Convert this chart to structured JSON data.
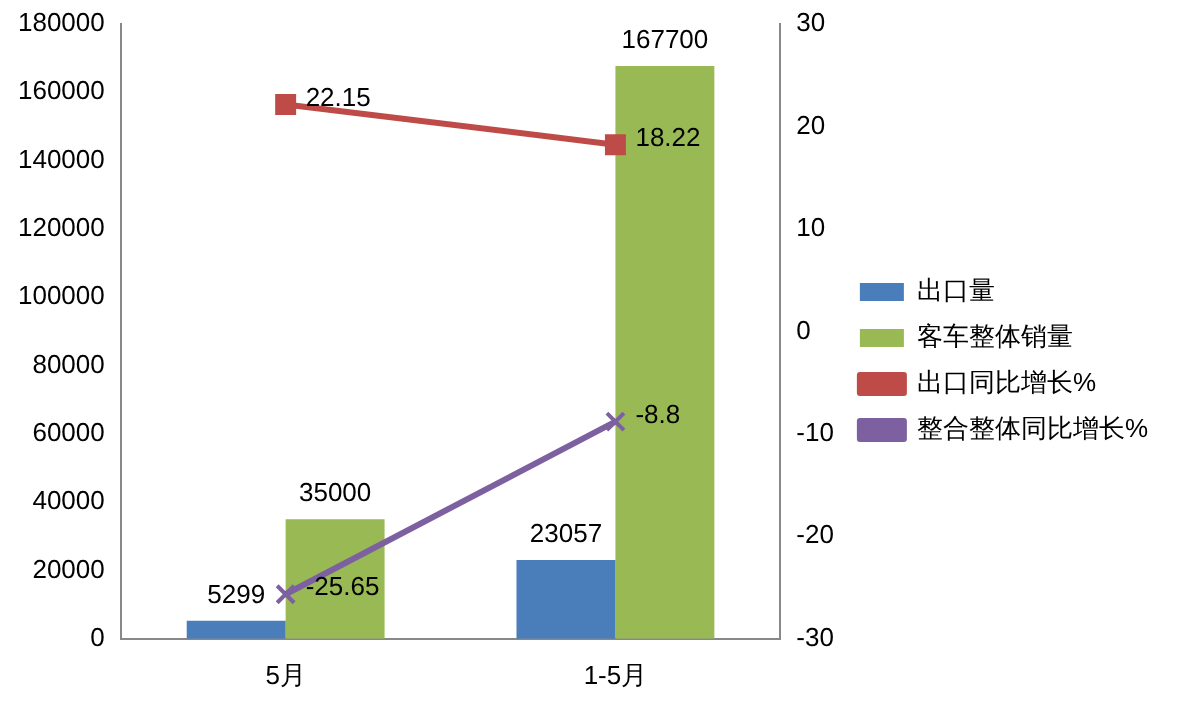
{
  "chart_data": {
    "type": "bar",
    "categories": [
      "5月",
      "1-5月"
    ],
    "series": [
      {
        "name": "出口量",
        "color": "#4a7ebb",
        "values": [
          5299,
          23057
        ]
      },
      {
        "name": "客车整体销量",
        "color": "#98b954",
        "values": [
          35000,
          167700
        ]
      },
      {
        "name": "出口同比增长%",
        "type": "line",
        "axis": "y2",
        "color": "#be4b48",
        "marker": "square",
        "values": [
          22.15,
          18.22
        ]
      },
      {
        "name": "整合整体同比增长%",
        "type": "line",
        "axis": "y2",
        "color": "#7d60a0",
        "marker": "cross",
        "values": [
          -25.65,
          -8.8
        ]
      }
    ],
    "ylim": [
      0,
      180000
    ],
    "yticks": [
      0,
      20000,
      40000,
      60000,
      80000,
      100000,
      120000,
      140000,
      160000,
      180000
    ],
    "y2lim": [
      -30,
      30
    ],
    "y2ticks": [
      -30,
      -20,
      -10,
      0,
      10,
      20,
      30
    ],
    "data_labels": true,
    "legend": "right",
    "grid": false
  }
}
